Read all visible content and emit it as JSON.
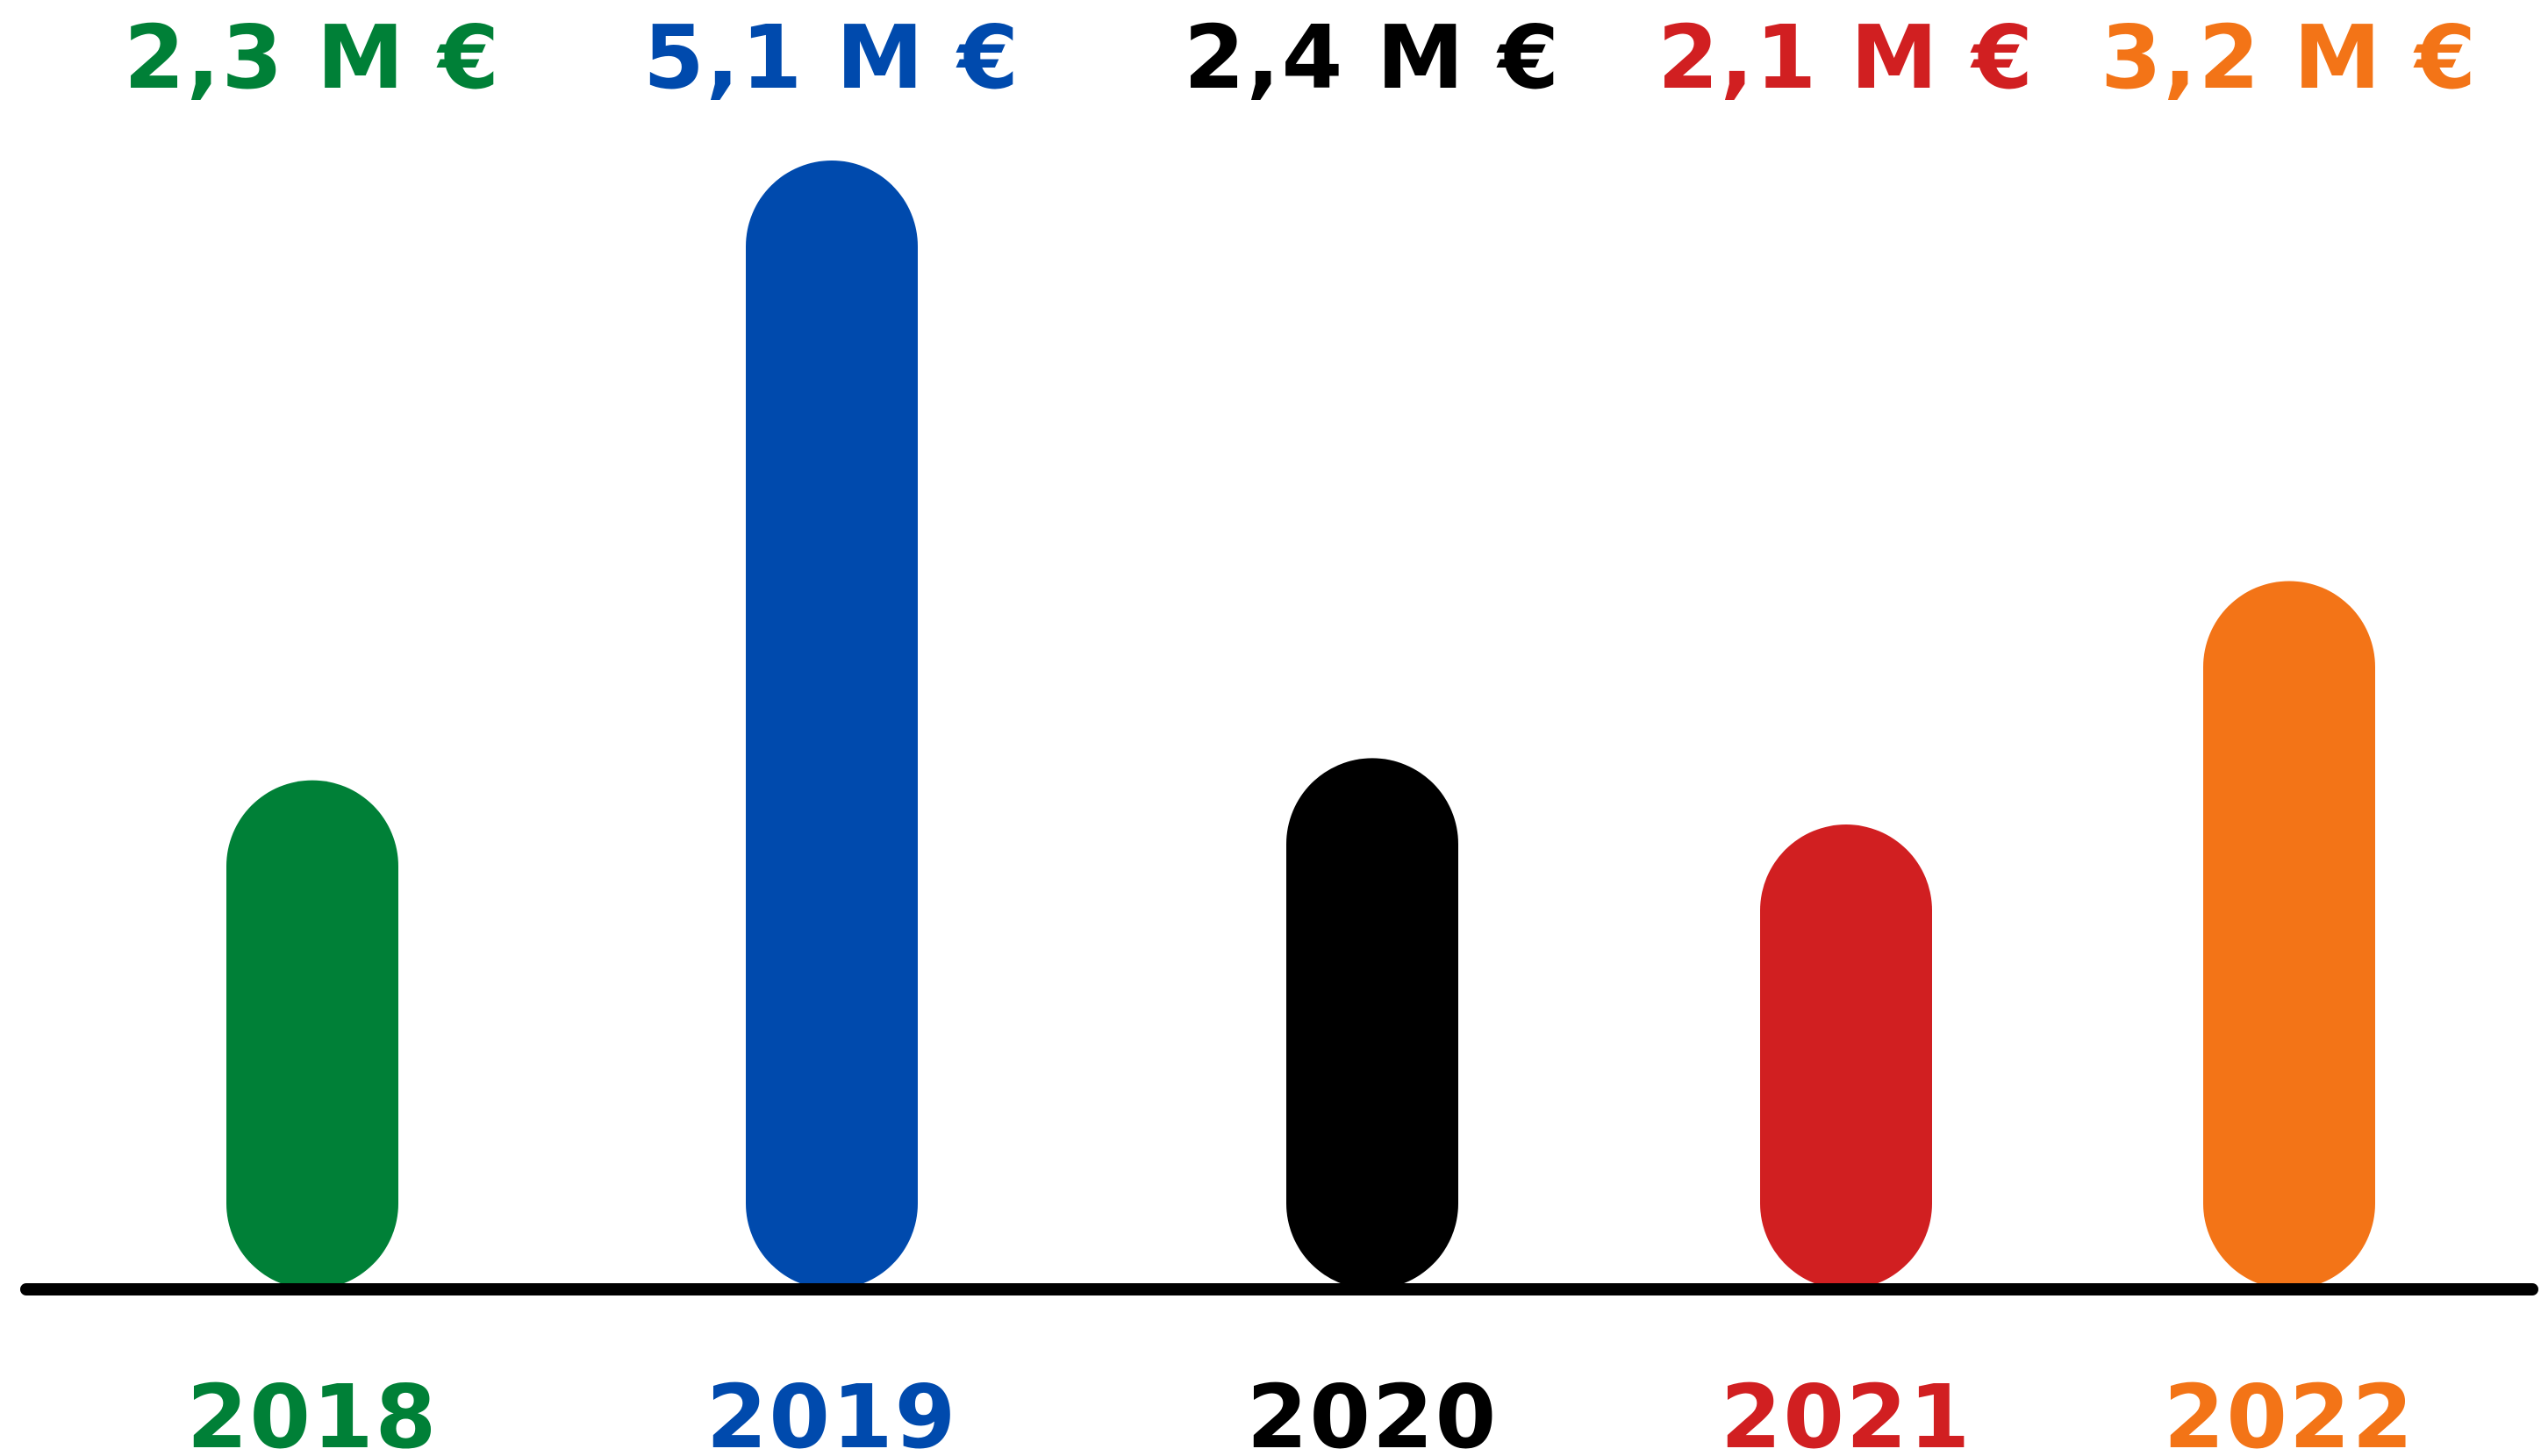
{
  "chart_data": {
    "type": "bar",
    "title": "",
    "xlabel": "",
    "ylabel": "",
    "grid": false,
    "ylim": [
      0,
      5.5
    ],
    "categories": [
      "2018",
      "2019",
      "2020",
      "2021",
      "2022"
    ],
    "values": [
      2.3,
      5.1,
      2.4,
      2.1,
      3.2
    ],
    "value_labels": [
      "2,3 M €",
      "5,1 M €",
      "2,4 M €",
      "2,1 M €",
      "3,2 M €"
    ],
    "colors": [
      "#008037",
      "#004AAD",
      "#000000",
      "#D11F21",
      "#F37417"
    ],
    "baseline_color": "#000000"
  }
}
